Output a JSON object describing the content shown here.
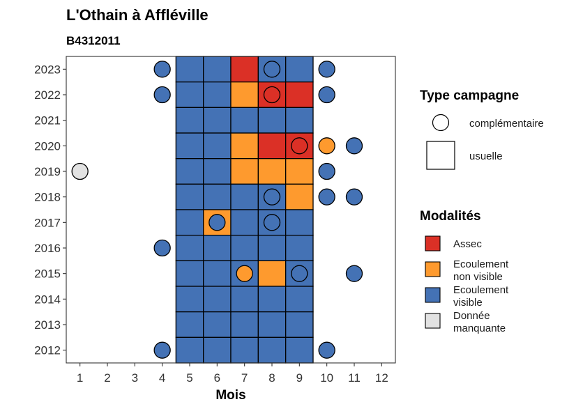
{
  "chart_data": {
    "type": "heatmap",
    "title": "L'Othain à Affléville",
    "subtitle": "B4312011",
    "xlabel": "Mois",
    "ylabel": "",
    "x_ticks": [
      1,
      2,
      3,
      4,
      5,
      6,
      7,
      8,
      9,
      10,
      11,
      12
    ],
    "y_ticks": [
      2023,
      2022,
      2021,
      2020,
      2019,
      2018,
      2017,
      2016,
      2015,
      2014,
      2013,
      2012
    ],
    "xlim": [
      0.5,
      12.5
    ],
    "ylim": [
      2011.5,
      2023.5
    ],
    "grid": false,
    "colors": {
      "Assec": "#db3026",
      "Ecoulement non visible": "#fe9a2e",
      "Ecoulement visible": "#4472b5",
      "Donnée manquante": "#e2e2e2"
    },
    "legend_shape": {
      "title": "Type campagne",
      "items": [
        "complémentaire",
        "usuelle"
      ]
    },
    "legend_fill": {
      "title": "Modalités",
      "items": [
        {
          "line1": "Assec",
          "line2": "",
          "key": "Assec"
        },
        {
          "line1": "Ecoulement",
          "line2": "non visible",
          "key": "Ecoulement non visible"
        },
        {
          "line1": "Ecoulement",
          "line2": "visible",
          "key": "Ecoulement visible"
        },
        {
          "line1": "Donnée",
          "line2": "manquante",
          "key": "Donnée manquante"
        }
      ]
    },
    "usuelle": [
      {
        "year": 2023,
        "values": {
          "5": "Ecoulement visible",
          "6": "Ecoulement visible",
          "7": "Assec",
          "8": "Ecoulement visible",
          "9": "Ecoulement visible"
        }
      },
      {
        "year": 2022,
        "values": {
          "5": "Ecoulement visible",
          "6": "Ecoulement visible",
          "7": "Ecoulement non visible",
          "8": "Assec",
          "9": "Assec"
        }
      },
      {
        "year": 2021,
        "values": {
          "5": "Ecoulement visible",
          "6": "Ecoulement visible",
          "7": "Ecoulement visible",
          "8": "Ecoulement visible",
          "9": "Ecoulement visible"
        }
      },
      {
        "year": 2020,
        "values": {
          "5": "Ecoulement visible",
          "6": "Ecoulement visible",
          "7": "Ecoulement non visible",
          "8": "Assec",
          "9": "Assec"
        }
      },
      {
        "year": 2019,
        "values": {
          "5": "Ecoulement visible",
          "6": "Ecoulement visible",
          "7": "Ecoulement non visible",
          "8": "Ecoulement non visible",
          "9": "Ecoulement non visible"
        }
      },
      {
        "year": 2018,
        "values": {
          "5": "Ecoulement visible",
          "6": "Ecoulement visible",
          "7": "Ecoulement visible",
          "8": "Ecoulement visible",
          "9": "Ecoulement non visible"
        }
      },
      {
        "year": 2017,
        "values": {
          "5": "Ecoulement visible",
          "6": "Ecoulement non visible",
          "7": "Ecoulement visible",
          "8": "Ecoulement visible",
          "9": "Ecoulement visible"
        }
      },
      {
        "year": 2016,
        "values": {
          "5": "Ecoulement visible",
          "6": "Ecoulement visible",
          "7": "Ecoulement visible",
          "8": "Ecoulement visible",
          "9": "Ecoulement visible"
        }
      },
      {
        "year": 2015,
        "values": {
          "5": "Ecoulement visible",
          "6": "Ecoulement visible",
          "7": "Ecoulement visible",
          "8": "Ecoulement non visible",
          "9": "Ecoulement visible"
        }
      },
      {
        "year": 2014,
        "values": {
          "5": "Ecoulement visible",
          "6": "Ecoulement visible",
          "7": "Ecoulement visible",
          "8": "Ecoulement visible",
          "9": "Ecoulement visible"
        }
      },
      {
        "year": 2013,
        "values": {
          "5": "Ecoulement visible",
          "6": "Ecoulement visible",
          "7": "Ecoulement visible",
          "8": "Ecoulement visible",
          "9": "Ecoulement visible"
        }
      },
      {
        "year": 2012,
        "values": {
          "5": "Ecoulement visible",
          "6": "Ecoulement visible",
          "7": "Ecoulement visible",
          "8": "Ecoulement visible",
          "9": "Ecoulement visible"
        }
      }
    ],
    "complementaire": [
      {
        "year": 2023,
        "month": 4,
        "value": "Ecoulement visible"
      },
      {
        "year": 2023,
        "month": 8,
        "value": "Ecoulement visible"
      },
      {
        "year": 2023,
        "month": 10,
        "value": "Ecoulement visible"
      },
      {
        "year": 2022,
        "month": 4,
        "value": "Ecoulement visible"
      },
      {
        "year": 2022,
        "month": 8,
        "value": "Assec"
      },
      {
        "year": 2022,
        "month": 10,
        "value": "Ecoulement visible"
      },
      {
        "year": 2020,
        "month": 9,
        "value": "Assec"
      },
      {
        "year": 2020,
        "month": 10,
        "value": "Ecoulement non visible"
      },
      {
        "year": 2020,
        "month": 11,
        "value": "Ecoulement visible"
      },
      {
        "year": 2019,
        "month": 1,
        "value": "Donnée manquante"
      },
      {
        "year": 2019,
        "month": 10,
        "value": "Ecoulement visible"
      },
      {
        "year": 2018,
        "month": 8,
        "value": "Ecoulement visible"
      },
      {
        "year": 2018,
        "month": 10,
        "value": "Ecoulement visible"
      },
      {
        "year": 2018,
        "month": 11,
        "value": "Ecoulement visible"
      },
      {
        "year": 2017,
        "month": 6,
        "value": "Ecoulement visible"
      },
      {
        "year": 2017,
        "month": 8,
        "value": "Ecoulement visible"
      },
      {
        "year": 2016,
        "month": 4,
        "value": "Ecoulement visible"
      },
      {
        "year": 2015,
        "month": 7,
        "value": "Ecoulement non visible"
      },
      {
        "year": 2015,
        "month": 9,
        "value": "Ecoulement visible"
      },
      {
        "year": 2015,
        "month": 11,
        "value": "Ecoulement visible"
      },
      {
        "year": 2012,
        "month": 4,
        "value": "Ecoulement visible"
      },
      {
        "year": 2012,
        "month": 10,
        "value": "Ecoulement visible"
      }
    ]
  }
}
